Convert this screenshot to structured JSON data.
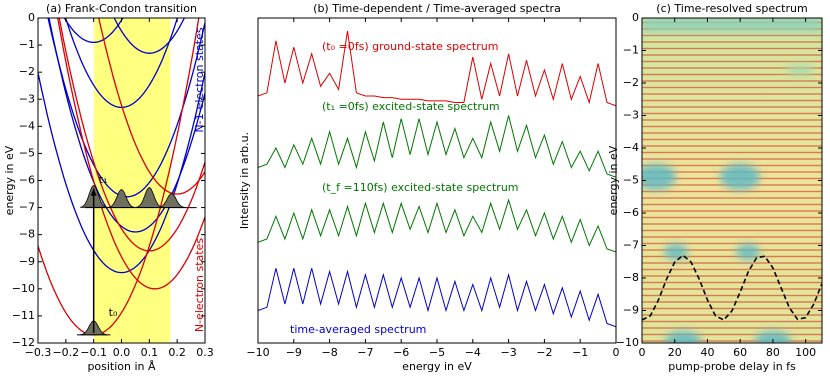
{
  "chart_data": [
    {
      "type": "curves",
      "title": "(a) Frank-Condon transition",
      "xlabel": "position in Å",
      "ylabel": "energy in eV",
      "xlim": [
        -0.3,
        0.3
      ],
      "ylim": [
        -12,
        0
      ],
      "xticks": [
        {
          "value": -0.3,
          "label": "−0.3"
        },
        {
          "value": -0.2,
          "label": "−0.2"
        },
        {
          "value": -0.1,
          "label": "−0.1"
        },
        {
          "value": 0,
          "label": "0.0"
        },
        0.1,
        0.2,
        0.3
      ],
      "yticks": [
        0,
        {
          "value": -1,
          "label": "−1"
        },
        {
          "value": -2,
          "label": "−2"
        },
        {
          "value": -3,
          "label": "−3"
        },
        {
          "value": -4,
          "label": "−4"
        },
        {
          "value": -5,
          "label": "−5"
        },
        {
          "value": -6,
          "label": "−6"
        },
        {
          "value": -7,
          "label": "−7"
        },
        {
          "value": -8,
          "label": "−8"
        },
        {
          "value": -9,
          "label": "−9"
        },
        {
          "value": -10,
          "label": "−10"
        },
        {
          "value": -11,
          "label": "−11"
        },
        {
          "value": -12,
          "label": "−12"
        }
      ],
      "highlight": [
        -0.1,
        0.175
      ],
      "highlight_color": "#ffff80",
      "curvature": 82,
      "curves": [
        {
          "color": "#0000cc",
          "vertex": [
            0.1,
            -1.3
          ]
        },
        {
          "color": "#0000cc",
          "vertex": [
            -0.1,
            -0.9
          ]
        },
        {
          "color": "#0000cc",
          "vertex": [
            0.0,
            -3.3
          ]
        },
        {
          "color": "#0000cc",
          "vertex": [
            0.02,
            -6.6
          ]
        },
        {
          "color": "#0000cc",
          "vertex": [
            0.05,
            -7.9
          ]
        },
        {
          "color": "#0000cc",
          "vertex": [
            0.0,
            -9.4
          ]
        },
        {
          "color": "#dd0000",
          "vertex": [
            0.2,
            -6.5
          ]
        },
        {
          "color": "#dd0000",
          "vertex": [
            0.1,
            -8.6
          ]
        },
        {
          "color": "#dd0000",
          "vertex": [
            0.12,
            -10.0
          ]
        },
        {
          "color": "#dd0000",
          "vertex": [
            -0.1,
            -11.7
          ]
        }
      ],
      "annotations": [
        {
          "text": "N-1-electron states",
          "color": "#0000cc"
        },
        {
          "text": "N-electron states",
          "color": "#dd0000"
        },
        {
          "text": "t₁",
          "color": "#000000"
        },
        {
          "text": "t₀",
          "color": "#000000"
        }
      ]
    },
    {
      "type": "line",
      "title": "(b) Time-dependent / Time-averaged spectra",
      "xlabel": "energy in eV",
      "ylabel": "Intensity in arb.u.",
      "xlim": [
        -10,
        0
      ],
      "ylim": [
        0,
        10
      ],
      "xticks": [
        {
          "value": -10,
          "label": "−10"
        },
        {
          "value": -9,
          "label": "−9"
        },
        {
          "value": -8,
          "label": "−8"
        },
        {
          "value": -7,
          "label": "−7"
        },
        {
          "value": -6,
          "label": "−6"
        },
        {
          "value": -5,
          "label": "−5"
        },
        {
          "value": -4,
          "label": "−4"
        },
        {
          "value": -3,
          "label": "−3"
        },
        {
          "value": -2,
          "label": "−2"
        },
        {
          "value": -1,
          "label": "−1"
        },
        0
      ],
      "x": [
        -10,
        -9.75,
        -9.5,
        -9.25,
        -9,
        -8.75,
        -8.5,
        -8.25,
        -8,
        -7.75,
        -7.5,
        -7.25,
        -7,
        -6.75,
        -6.5,
        -6.25,
        -6,
        -5.75,
        -5.5,
        -5.25,
        -5,
        -4.75,
        -4.5,
        -4.25,
        -4,
        -3.75,
        -3.5,
        -3.25,
        -3,
        -2.75,
        -2.5,
        -2.25,
        -2,
        -1.75,
        -1.5,
        -1.25,
        -1,
        -0.75,
        -0.5,
        -0.25,
        0
      ],
      "series": [
        {
          "name": "(t₀ =0fs) ground-state spectrum",
          "color": "#dd0000",
          "values": [
            7.6,
            7.7,
            9.3,
            8.0,
            9.1,
            8.0,
            8.9,
            7.9,
            8.3,
            7.8,
            9.6,
            7.7,
            7.6,
            7.6,
            7.55,
            7.55,
            7.5,
            7.5,
            7.5,
            7.45,
            7.45,
            7.45,
            7.4,
            7.4,
            8.8,
            7.5,
            8.6,
            7.6,
            8.9,
            7.6,
            8.7,
            7.6,
            8.4,
            7.5,
            8.6,
            7.5,
            8.2,
            7.4,
            8.6,
            7.4,
            7.3
          ]
        },
        {
          "name": "(t₁ =0fs) excited-state spectrum",
          "color": "#007700",
          "values": [
            5.4,
            5.5,
            6.0,
            5.4,
            6.1,
            5.5,
            6.3,
            5.5,
            6.5,
            5.5,
            6.3,
            5.4,
            6.5,
            5.6,
            6.8,
            5.7,
            6.9,
            5.8,
            6.9,
            5.8,
            6.8,
            5.8,
            6.6,
            5.7,
            6.3,
            5.7,
            6.8,
            5.9,
            7.0,
            5.9,
            6.7,
            5.7,
            6.4,
            5.5,
            6.2,
            5.4,
            5.9,
            5.3,
            5.9,
            5.2,
            5.1
          ]
        },
        {
          "name": "(t_f =110fs) excited-state spectrum",
          "color": "#007700",
          "values": [
            3.1,
            3.2,
            3.9,
            3.2,
            4.0,
            3.2,
            4.1,
            3.3,
            4.1,
            3.3,
            4.2,
            3.3,
            4.3,
            3.4,
            4.3,
            3.4,
            4.3,
            3.5,
            4.2,
            3.4,
            4.3,
            3.4,
            4.1,
            3.3,
            3.9,
            3.4,
            4.3,
            3.5,
            4.4,
            3.5,
            4.1,
            3.3,
            4.0,
            3.2,
            3.9,
            3.1,
            3.8,
            3.0,
            3.6,
            2.9,
            2.8
          ]
        },
        {
          "name": "time-averaged spectrum",
          "color": "#0000cc",
          "values": [
            1.0,
            1.1,
            2.3,
            1.2,
            2.3,
            1.2,
            2.3,
            1.2,
            2.2,
            1.2,
            2.2,
            1.1,
            2.1,
            1.1,
            2.1,
            1.1,
            2.0,
            1.1,
            2.0,
            1.0,
            2.0,
            1.0,
            1.9,
            1.0,
            1.8,
            1.0,
            2.0,
            1.1,
            2.1,
            1.0,
            1.9,
            1.0,
            1.8,
            0.9,
            1.7,
            0.8,
            1.6,
            0.7,
            1.5,
            0.6,
            0.5
          ]
        }
      ]
    },
    {
      "type": "line",
      "title": "(c) Time-resolved spectrum",
      "xlabel": "pump-probe delay in fs",
      "ylabel": "energy in eV",
      "xlim": [
        0,
        110
      ],
      "ylim": [
        -10,
        0
      ],
      "xticks": [
        0,
        20,
        40,
        60,
        80,
        100
      ],
      "yticks": [
        0,
        {
          "value": -1,
          "label": "−1"
        },
        {
          "value": -2,
          "label": "−2"
        },
        {
          "value": -3,
          "label": "−3"
        },
        {
          "value": -4,
          "label": "−4"
        },
        {
          "value": -5,
          "label": "−5"
        },
        {
          "value": -6,
          "label": "−6"
        },
        {
          "value": -7,
          "label": "−7"
        },
        {
          "value": -8,
          "label": "−8"
        },
        {
          "value": -9,
          "label": "−9"
        },
        {
          "value": -10,
          "label": "−10"
        }
      ],
      "x": [
        0,
        5,
        10,
        15,
        20,
        25,
        30,
        35,
        40,
        45,
        50,
        55,
        60,
        65,
        70,
        75,
        80,
        85,
        90,
        95,
        100,
        105,
        110
      ],
      "series": [
        {
          "color": "#000000",
          "dashed": true,
          "values": [
            -9.29,
            -9.17,
            -8.68,
            -8.04,
            -7.51,
            -7.3,
            -7.51,
            -8.04,
            -8.68,
            -9.17,
            -9.29,
            -9.01,
            -8.43,
            -7.8,
            -7.38,
            -7.33,
            -7.69,
            -8.3,
            -8.91,
            -9.27,
            -9.22,
            -8.8,
            -8.17
          ]
        }
      ]
    }
  ]
}
